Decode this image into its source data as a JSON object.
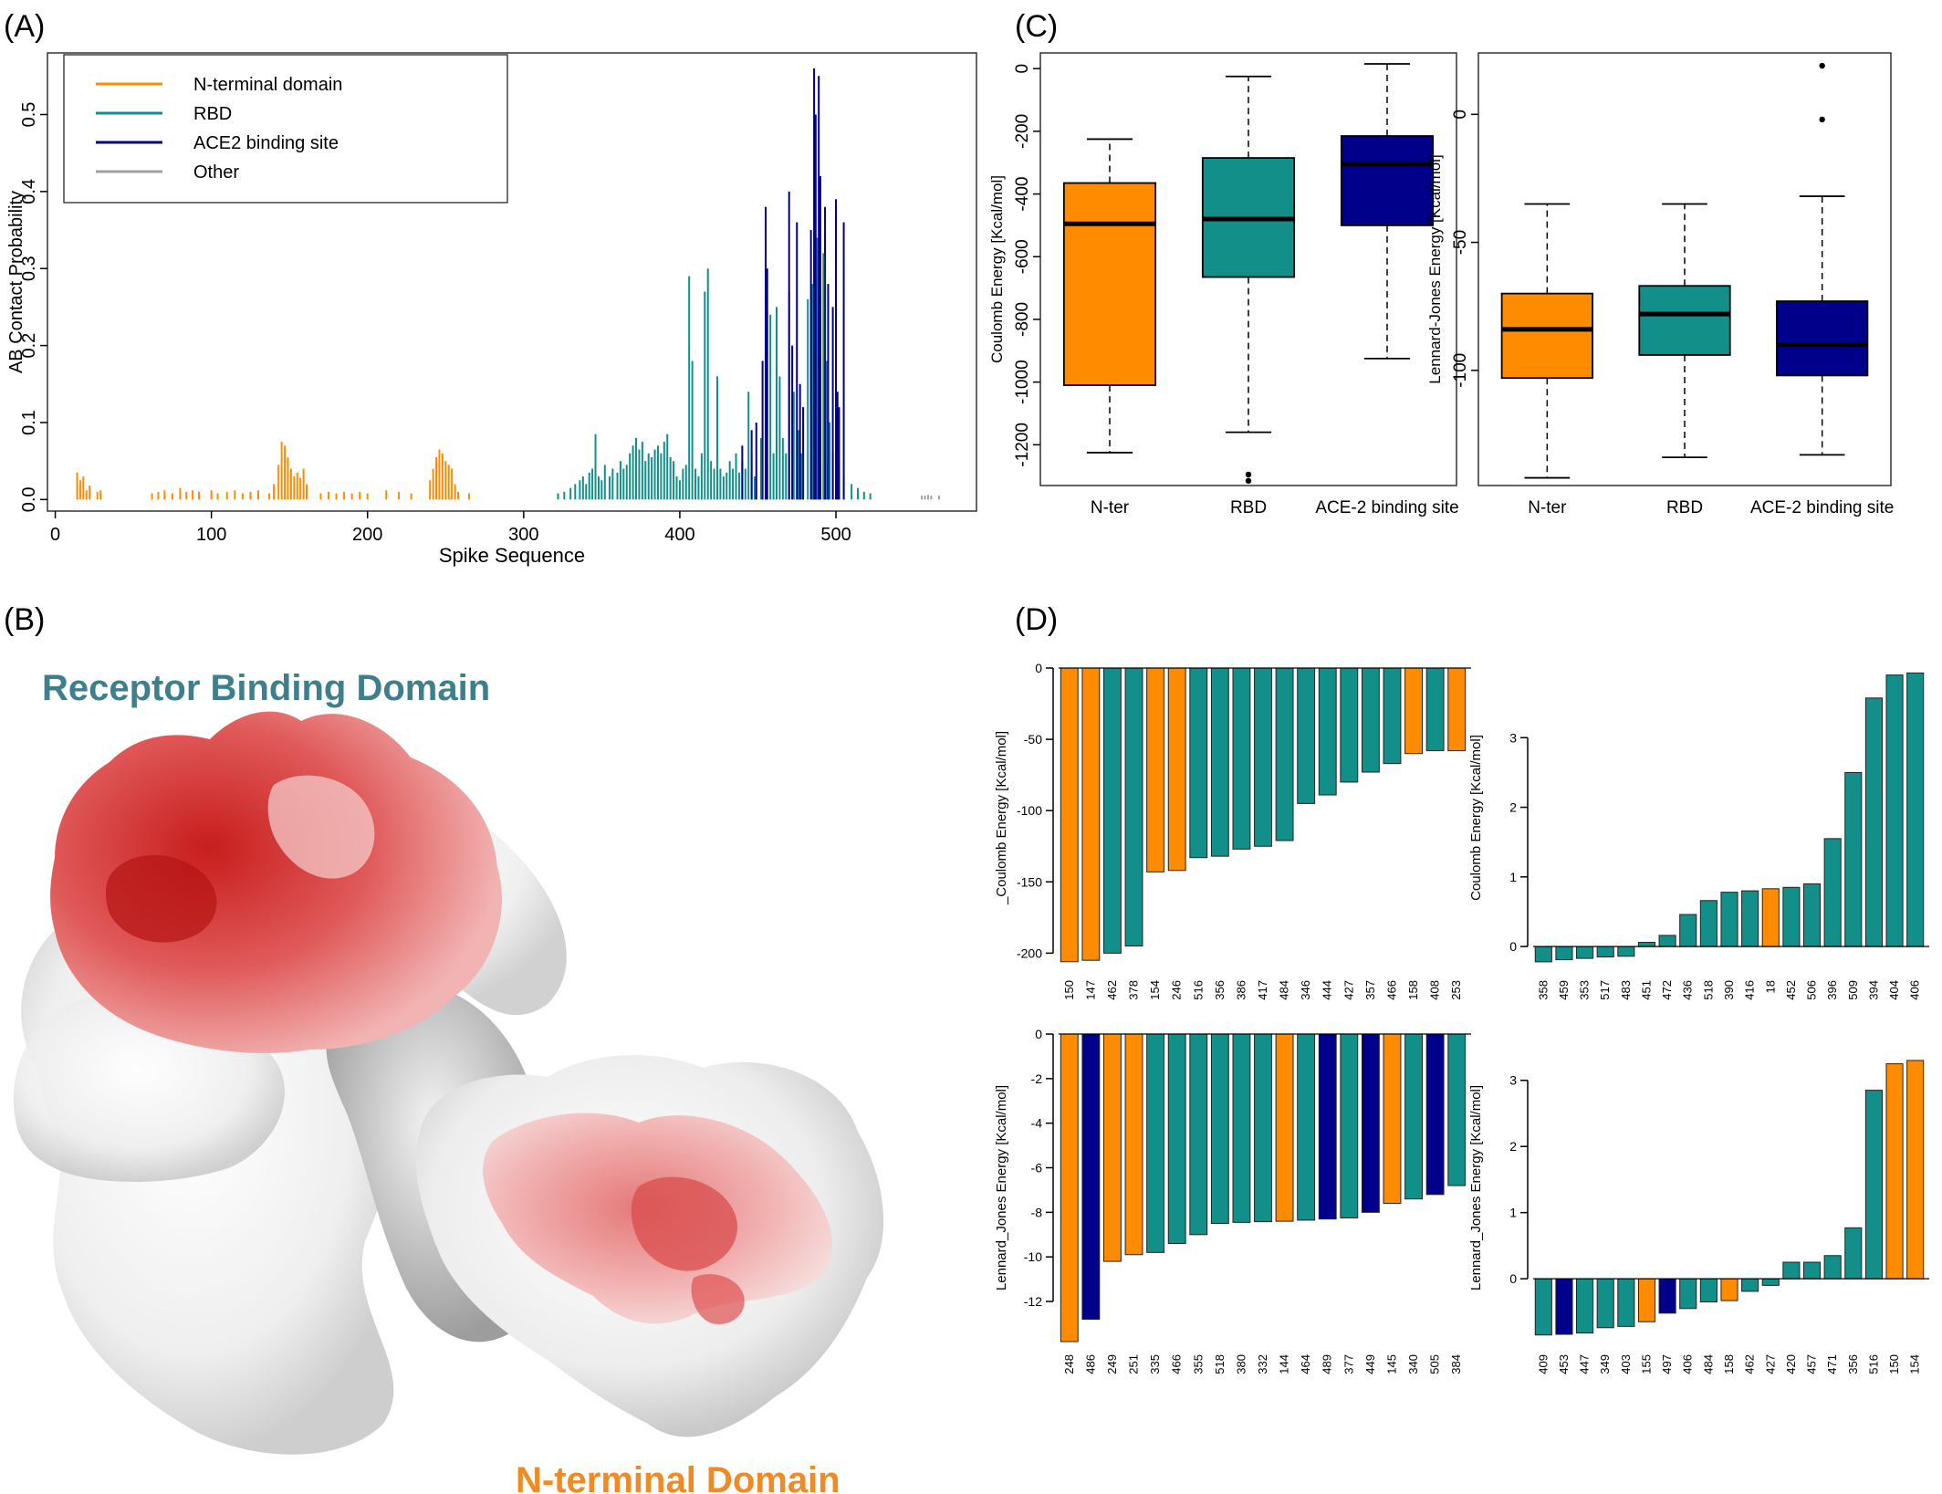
{
  "panels": {
    "A": {
      "label": "(A)"
    },
    "B": {
      "label": "(B)",
      "rbd_title": "Receptor Binding Domain",
      "nterm_title": "N-terminal Domain"
    },
    "C": {
      "label": "(C)"
    },
    "D": {
      "label": "(D)"
    }
  },
  "colors": {
    "nterm": "#FF8C00",
    "rbd": "#138F8A",
    "ace2": "#00008B",
    "other": "#A0A0A0",
    "rbd_title": "#3D7F8C",
    "nterm_title": "#F08A24"
  },
  "chart_data": [
    {
      "id": "A",
      "type": "bar",
      "xlabel": "Spike Sequence",
      "ylabel": "AB Contact Probability",
      "xlim": [
        -5,
        590
      ],
      "ylim": [
        -0.015,
        0.58
      ],
      "xticks": [
        0,
        100,
        200,
        300,
        400,
        500
      ],
      "yticks": [
        0.0,
        0.1,
        0.2,
        0.3,
        0.4,
        0.5
      ],
      "legend": {
        "placement": "top-left",
        "entries": [
          "N-terminal domain",
          "RBD",
          "ACE2 binding site",
          "Other"
        ]
      },
      "series": [
        {
          "name": "N-terminal domain",
          "color_key": "nterm",
          "points": [
            [
              14,
              0.035
            ],
            [
              16,
              0.025
            ],
            [
              18,
              0.03
            ],
            [
              20,
              0.012
            ],
            [
              22,
              0.018
            ],
            [
              27,
              0.01
            ],
            [
              29,
              0.012
            ],
            [
              62,
              0.008
            ],
            [
              66,
              0.01
            ],
            [
              70,
              0.012
            ],
            [
              75,
              0.008
            ],
            [
              80,
              0.015
            ],
            [
              84,
              0.01
            ],
            [
              88,
              0.012
            ],
            [
              92,
              0.01
            ],
            [
              100,
              0.012
            ],
            [
              104,
              0.008
            ],
            [
              110,
              0.01
            ],
            [
              115,
              0.012
            ],
            [
              120,
              0.008
            ],
            [
              125,
              0.01
            ],
            [
              130,
              0.012
            ],
            [
              137,
              0.008
            ],
            [
              140,
              0.02
            ],
            [
              143,
              0.045
            ],
            [
              145,
              0.075
            ],
            [
              147,
              0.07
            ],
            [
              149,
              0.055
            ],
            [
              151,
              0.04
            ],
            [
              153,
              0.03
            ],
            [
              155,
              0.035
            ],
            [
              157,
              0.028
            ],
            [
              159,
              0.04
            ],
            [
              161,
              0.02
            ],
            [
              170,
              0.008
            ],
            [
              175,
              0.01
            ],
            [
              180,
              0.008
            ],
            [
              185,
              0.01
            ],
            [
              190,
              0.008
            ],
            [
              195,
              0.01
            ],
            [
              200,
              0.008
            ],
            [
              212,
              0.012
            ],
            [
              220,
              0.01
            ],
            [
              228,
              0.008
            ],
            [
              240,
              0.025
            ],
            [
              242,
              0.04
            ],
            [
              244,
              0.055
            ],
            [
              246,
              0.065
            ],
            [
              248,
              0.06
            ],
            [
              250,
              0.05
            ],
            [
              252,
              0.045
            ],
            [
              254,
              0.04
            ],
            [
              256,
              0.02
            ],
            [
              258,
              0.01
            ],
            [
              265,
              0.008
            ]
          ]
        },
        {
          "name": "RBD",
          "color_key": "rbd",
          "points": [
            [
              322,
              0.008
            ],
            [
              326,
              0.01
            ],
            [
              330,
              0.015
            ],
            [
              333,
              0.02
            ],
            [
              336,
              0.025
            ],
            [
              338,
              0.03
            ],
            [
              340,
              0.02
            ],
            [
              342,
              0.035
            ],
            [
              344,
              0.04
            ],
            [
              346,
              0.085
            ],
            [
              348,
              0.03
            ],
            [
              350,
              0.025
            ],
            [
              352,
              0.045
            ],
            [
              355,
              0.03
            ],
            [
              357,
              0.04
            ],
            [
              360,
              0.035
            ],
            [
              362,
              0.05
            ],
            [
              364,
              0.04
            ],
            [
              366,
              0.045
            ],
            [
              368,
              0.06
            ],
            [
              370,
              0.07
            ],
            [
              372,
              0.08
            ],
            [
              374,
              0.065
            ],
            [
              376,
              0.075
            ],
            [
              378,
              0.05
            ],
            [
              380,
              0.06
            ],
            [
              382,
              0.055
            ],
            [
              384,
              0.065
            ],
            [
              386,
              0.07
            ],
            [
              388,
              0.06
            ],
            [
              390,
              0.075
            ],
            [
              392,
              0.085
            ],
            [
              394,
              0.055
            ],
            [
              396,
              0.05
            ],
            [
              398,
              0.03
            ],
            [
              400,
              0.025
            ],
            [
              402,
              0.04
            ],
            [
              404,
              0.045
            ],
            [
              406,
              0.29
            ],
            [
              408,
              0.18
            ],
            [
              410,
              0.04
            ],
            [
              412,
              0.03
            ],
            [
              414,
              0.06
            ],
            [
              416,
              0.27
            ],
            [
              418,
              0.3
            ],
            [
              420,
              0.05
            ],
            [
              422,
              0.04
            ],
            [
              424,
              0.16
            ],
            [
              426,
              0.04
            ],
            [
              428,
              0.03
            ],
            [
              430,
              0.035
            ],
            [
              432,
              0.05
            ],
            [
              434,
              0.04
            ],
            [
              436,
              0.06
            ],
            [
              438,
              0.035
            ],
            [
              440,
              0.05
            ],
            [
              442,
              0.04
            ],
            [
              444,
              0.14
            ],
            [
              446,
              0.06
            ],
            [
              448,
              0.03
            ],
            [
              452,
              0.08
            ],
            [
              455,
              0.26
            ],
            [
              458,
              0.24
            ],
            [
              460,
              0.06
            ],
            [
              462,
              0.25
            ],
            [
              464,
              0.16
            ],
            [
              466,
              0.08
            ],
            [
              468,
              0.06
            ],
            [
              470,
              0.27
            ],
            [
              473,
              0.14
            ],
            [
              476,
              0.09
            ],
            [
              478,
              0.06
            ],
            [
              482,
              0.26
            ],
            [
              485,
              0.28
            ],
            [
              488,
              0.34
            ],
            [
              492,
              0.32
            ],
            [
              494,
              0.18
            ],
            [
              496,
              0.1
            ],
            [
              498,
              0.06
            ],
            [
              502,
              0.05
            ],
            [
              505,
              0.03
            ],
            [
              510,
              0.02
            ],
            [
              514,
              0.015
            ],
            [
              518,
              0.01
            ],
            [
              522,
              0.008
            ]
          ]
        },
        {
          "name": "ACE2 binding site",
          "color_key": "ace2",
          "points": [
            [
              440,
              0.07
            ],
            [
              446,
              0.09
            ],
            [
              449,
              0.1
            ],
            [
              453,
              0.18
            ],
            [
              455,
              0.38
            ],
            [
              456,
              0.3
            ],
            [
              470,
              0.4
            ],
            [
              472,
              0.2
            ],
            [
              475,
              0.36
            ],
            [
              477,
              0.15
            ],
            [
              479,
              0.12
            ],
            [
              484,
              0.35
            ],
            [
              486,
              0.56
            ],
            [
              487,
              0.5
            ],
            [
              489,
              0.55
            ],
            [
              490,
              0.42
            ],
            [
              493,
              0.38
            ],
            [
              495,
              0.28
            ],
            [
              498,
              0.25
            ],
            [
              500,
              0.39
            ],
            [
              501,
              0.14
            ],
            [
              502,
              0.12
            ],
            [
              505,
              0.36
            ]
          ]
        },
        {
          "name": "Other",
          "color_key": "other",
          "points": [
            [
              555,
              0.005
            ],
            [
              557,
              0.005
            ],
            [
              559,
              0.006
            ],
            [
              561,
              0.005
            ],
            [
              566,
              0.005
            ]
          ]
        }
      ]
    },
    {
      "id": "C1",
      "type": "boxplot",
      "ylabel": "Coulomb Energy [Kcal/mol]",
      "ylim": [
        -1330,
        50
      ],
      "yticks": [
        0,
        -200,
        -400,
        -600,
        -800,
        -1000,
        -1200
      ],
      "categories": [
        "N-ter",
        "RBD",
        "ACE-2 binding site"
      ],
      "boxes": [
        {
          "color_key": "nterm",
          "whisker_low": -1225,
          "q1": -1010,
          "median": -495,
          "q3": -365,
          "whisker_high": -225,
          "outliers": []
        },
        {
          "color_key": "rbd",
          "whisker_low": -1160,
          "q1": -665,
          "median": -480,
          "q3": -285,
          "whisker_high": -25,
          "outliers": [
            -1295,
            -1315
          ]
        },
        {
          "color_key": "ace2",
          "whisker_low": -925,
          "q1": -500,
          "median": -305,
          "q3": -215,
          "whisker_high": 15,
          "outliers": []
        }
      ]
    },
    {
      "id": "C2",
      "type": "boxplot",
      "ylabel": "Lennard-Jones Energy [Kcal/mol]",
      "ylim": [
        -145,
        24
      ],
      "yticks": [
        0,
        -50,
        -100
      ],
      "categories": [
        "N-ter",
        "RBD",
        "ACE-2 binding site"
      ],
      "boxes": [
        {
          "color_key": "nterm",
          "whisker_low": -142,
          "q1": -103,
          "median": -84,
          "q3": -70,
          "whisker_high": -35,
          "outliers": []
        },
        {
          "color_key": "rbd",
          "whisker_low": -134,
          "q1": -94,
          "median": -78,
          "q3": -67,
          "whisker_high": -35,
          "outliers": []
        },
        {
          "color_key": "ace2",
          "whisker_low": -133,
          "q1": -102,
          "median": -90,
          "q3": -73,
          "whisker_high": -32,
          "outliers": [
            19,
            -2
          ]
        }
      ]
    },
    {
      "id": "D1",
      "type": "bar",
      "ylabel": "_Coulomb Energy [Kcal/mol]",
      "ylim": [
        -210,
        0
      ],
      "yticks": [
        0,
        -50,
        -100,
        -150,
        -200
      ],
      "categories": [
        "150",
        "147",
        "462",
        "378",
        "154",
        "246",
        "516",
        "356",
        "386",
        "417",
        "484",
        "346",
        "444",
        "427",
        "357",
        "466",
        "158",
        "408",
        "253"
      ],
      "values": [
        -206,
        -205,
        -200,
        -195,
        -143,
        -142,
        -133,
        -132,
        -127,
        -125,
        -121,
        -95,
        -89,
        -80,
        -73,
        -67,
        -60,
        -58,
        -58
      ],
      "color_keys": [
        "nterm",
        "nterm",
        "rbd",
        "rbd",
        "nterm",
        "nterm",
        "rbd",
        "rbd",
        "rbd",
        "rbd",
        "rbd",
        "rbd",
        "rbd",
        "rbd",
        "rbd",
        "rbd",
        "nterm",
        "rbd",
        "nterm"
      ]
    },
    {
      "id": "D2",
      "type": "bar",
      "ylabel": "Coulomb Energy [Kcal/mol]",
      "ylim": [
        -0.3,
        4
      ],
      "yticks": [
        0,
        1,
        2,
        3
      ],
      "categories": [
        "358",
        "459",
        "353",
        "517",
        "483",
        "451",
        "472",
        "436",
        "518",
        "390",
        "416",
        "18",
        "452",
        "506",
        "396",
        "509",
        "394",
        "404",
        "406"
      ],
      "values": [
        -0.22,
        -0.19,
        -0.17,
        -0.15,
        -0.14,
        0.06,
        0.16,
        0.46,
        0.66,
        0.78,
        0.8,
        0.83,
        0.85,
        0.9,
        1.55,
        2.5,
        3.57,
        3.9,
        3.93
      ],
      "color_keys": [
        "rbd",
        "rbd",
        "rbd",
        "rbd",
        "rbd",
        "rbd",
        "rbd",
        "rbd",
        "rbd",
        "rbd",
        "rbd",
        "nterm",
        "rbd",
        "rbd",
        "rbd",
        "rbd",
        "rbd",
        "rbd",
        "rbd"
      ]
    },
    {
      "id": "D3",
      "type": "bar",
      "ylabel": "Lennard_Jones Energy [Kcal/mol]",
      "ylim": [
        -13.8,
        0
      ],
      "yticks": [
        0,
        -2,
        -4,
        -6,
        -8,
        -10,
        -12
      ],
      "categories": [
        "248",
        "486",
        "249",
        "251",
        "335",
        "466",
        "355",
        "518",
        "380",
        "332",
        "144",
        "464",
        "489",
        "377",
        "449",
        "145",
        "340",
        "505",
        "384"
      ],
      "values": [
        -13.8,
        -12.8,
        -10.2,
        -9.9,
        -9.8,
        -9.4,
        -9.0,
        -8.5,
        -8.45,
        -8.42,
        -8.4,
        -8.35,
        -8.3,
        -8.25,
        -8.0,
        -7.6,
        -7.4,
        -7.2,
        -6.8
      ],
      "color_keys": [
        "nterm",
        "ace2",
        "nterm",
        "nterm",
        "rbd",
        "rbd",
        "rbd",
        "rbd",
        "rbd",
        "rbd",
        "nterm",
        "rbd",
        "ace2",
        "rbd",
        "ace2",
        "nterm",
        "rbd",
        "ace2",
        "rbd"
      ]
    },
    {
      "id": "D4",
      "type": "bar",
      "ylabel": "Lennard_Jones Energy [Kcal/mol]",
      "ylim": [
        -0.95,
        3.7
      ],
      "yticks": [
        0,
        1,
        2,
        3
      ],
      "categories": [
        "409",
        "453",
        "447",
        "349",
        "403",
        "155",
        "497",
        "406",
        "484",
        "158",
        "462",
        "427",
        "420",
        "457",
        "471",
        "356",
        "516",
        "150",
        "154"
      ],
      "values": [
        -0.85,
        -0.84,
        -0.82,
        -0.74,
        -0.72,
        -0.65,
        -0.52,
        -0.45,
        -0.35,
        -0.33,
        -0.19,
        -0.1,
        0.25,
        0.25,
        0.35,
        0.77,
        2.85,
        3.25,
        3.3
      ],
      "color_keys": [
        "rbd",
        "ace2",
        "rbd",
        "rbd",
        "rbd",
        "nterm",
        "ace2",
        "rbd",
        "rbd",
        "nterm",
        "rbd",
        "rbd",
        "rbd",
        "rbd",
        "rbd",
        "rbd",
        "rbd",
        "nterm",
        "nterm"
      ]
    }
  ]
}
